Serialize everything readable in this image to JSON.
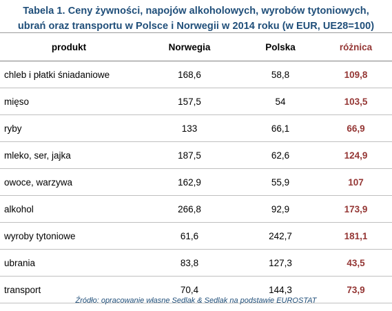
{
  "title": {
    "line1": "Tabela 1. Ceny żywności, napojów alkoholowych, wyrobów tytoniowych,",
    "line2": "ubrań oraz transportu w Polsce i Norwegii w 2014 roku (w EUR, UE28=100)"
  },
  "table": {
    "headers": {
      "product": "produkt",
      "norway": "Norwegia",
      "poland": "Polska",
      "difference": "różnica"
    },
    "rows": [
      {
        "product": "chleb i płatki śniadaniowe",
        "norway": "168,6",
        "poland": "58,8",
        "difference": "109,8"
      },
      {
        "product": "mięso",
        "norway": "157,5",
        "poland": "54",
        "difference": "103,5"
      },
      {
        "product": "ryby",
        "norway": "133",
        "poland": "66,1",
        "difference": "66,9"
      },
      {
        "product": "mleko, ser, jajka",
        "norway": "187,5",
        "poland": "62,6",
        "difference": "124,9"
      },
      {
        "product": "owoce, warzywa",
        "norway": "162,9",
        "poland": "55,9",
        "difference": "107"
      },
      {
        "product": "alkohol",
        "norway": "266,8",
        "poland": "92,9",
        "difference": "173,9"
      },
      {
        "product": "wyroby tytoniowe",
        "norway": "61,6",
        "poland": "242,7",
        "difference": "181,1"
      },
      {
        "product": "ubrania",
        "norway": "83,8",
        "poland": "127,3",
        "difference": "43,5"
      },
      {
        "product": "transport",
        "norway": "70,4",
        "poland": "144,3",
        "difference": "73,9"
      }
    ]
  },
  "source": "Źródło: opracowanie własne Sedlak & Sedlak na podstawie EUROSTAT",
  "colors": {
    "title": "#1f4e79",
    "difference": "#943634",
    "source": "#1f4e79"
  }
}
